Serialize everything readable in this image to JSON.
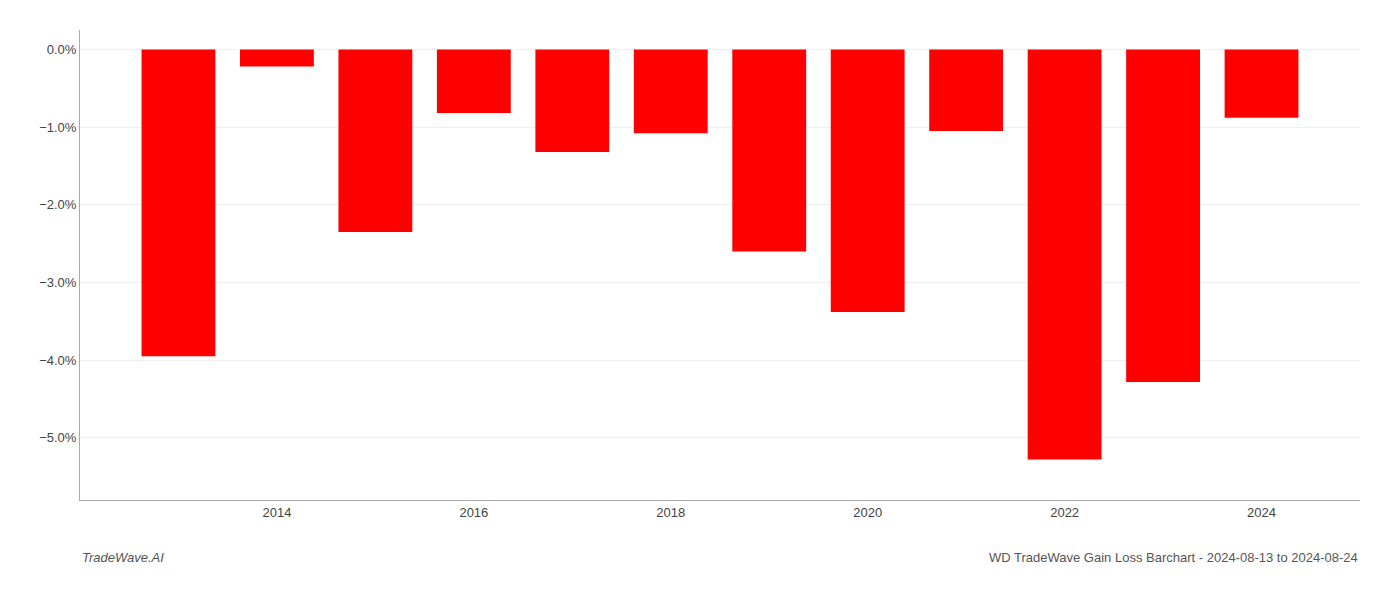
{
  "chart_data": {
    "type": "bar",
    "title": "WD TradeWave Gain Loss Barchart - 2024-08-13 to 2024-08-24",
    "annotations": [
      "TradeWave.AI"
    ],
    "x": [
      2013,
      2014,
      2015,
      2016,
      2017,
      2018,
      2019,
      2020,
      2021,
      2022,
      2023,
      2024
    ],
    "values": [
      -3.95,
      -0.22,
      -2.35,
      -0.82,
      -1.32,
      -1.08,
      -2.6,
      -3.38,
      -1.05,
      -5.28,
      -4.28,
      -0.88
    ],
    "color": "#ff0000",
    "xlim": [
      2012,
      2025
    ],
    "xticks": [
      2014,
      2016,
      2018,
      2020,
      2022,
      2024
    ],
    "ylim": [
      -5.8,
      0.25
    ],
    "yticks": [
      {
        "value": 0.0,
        "label": "0.0%"
      },
      {
        "value": -1.0,
        "label": "−1.0%"
      },
      {
        "value": -2.0,
        "label": "−2.0%"
      },
      {
        "value": -3.0,
        "label": "−3.0%"
      },
      {
        "value": -4.0,
        "label": "−4.0%"
      },
      {
        "value": -5.0,
        "label": "−5.0%"
      }
    ],
    "grid": "y"
  }
}
